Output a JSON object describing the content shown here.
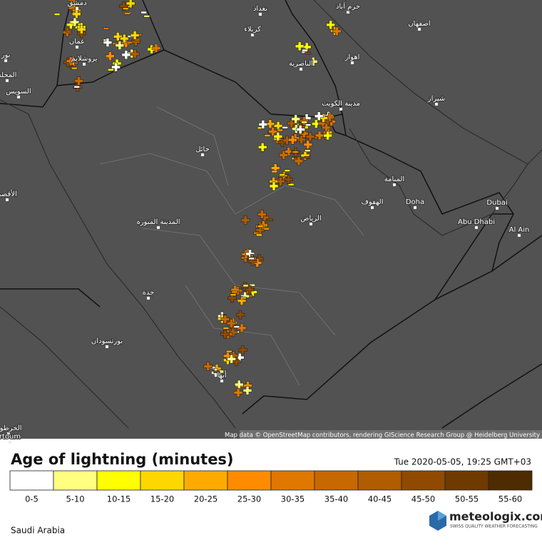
{
  "map": {
    "cities": [
      "دمشق",
      "بغداد",
      "خرم آباد",
      "اصفهان",
      "كربلاء",
      "عمان",
      "اهواز",
      "الناصرية",
      "مدينة الكويت",
      "شيراز",
      "حائل",
      "المنامة",
      "الهفوف",
      "Doha",
      "الرياض",
      "Abu Dhabi",
      "Dubai",
      "Al Ain",
      "المدينة المنورة",
      "جدة",
      "بورتسودان",
      "أبها",
      "السويس",
      "المحلة",
      "بور",
      "الأقصر",
      "الخرطوم",
      "rtoum",
      "يروشلايم"
    ],
    "attribution": "Map data © OpenStreetMap contributors, rendering GIScience Research Group @ Heidelberg University"
  },
  "legend": {
    "title": "Age of lightning (minutes)",
    "timestamp": "Tue 2020-05-05, 19:25 GMT+03",
    "items": [
      {
        "label": "0-5",
        "color": "#ffffff"
      },
      {
        "label": "5-10",
        "color": "#ffff80"
      },
      {
        "label": "10-15",
        "color": "#ffff00"
      },
      {
        "label": "15-20",
        "color": "#ffd700"
      },
      {
        "label": "20-25",
        "color": "#ffaa00"
      },
      {
        "label": "25-30",
        "color": "#ff8c00"
      },
      {
        "label": "30-35",
        "color": "#e07800"
      },
      {
        "label": "35-40",
        "color": "#c86800"
      },
      {
        "label": "40-45",
        "color": "#b05c00"
      },
      {
        "label": "45-50",
        "color": "#8f4a00"
      },
      {
        "label": "50-55",
        "color": "#6e3a00"
      },
      {
        "label": "55-60",
        "color": "#4f2b00"
      }
    ]
  },
  "footer": {
    "region": "Saudi Arabia",
    "brand": "meteologix.com",
    "tagline": "SWISS QUALITY WEATHER FORECASTING"
  }
}
